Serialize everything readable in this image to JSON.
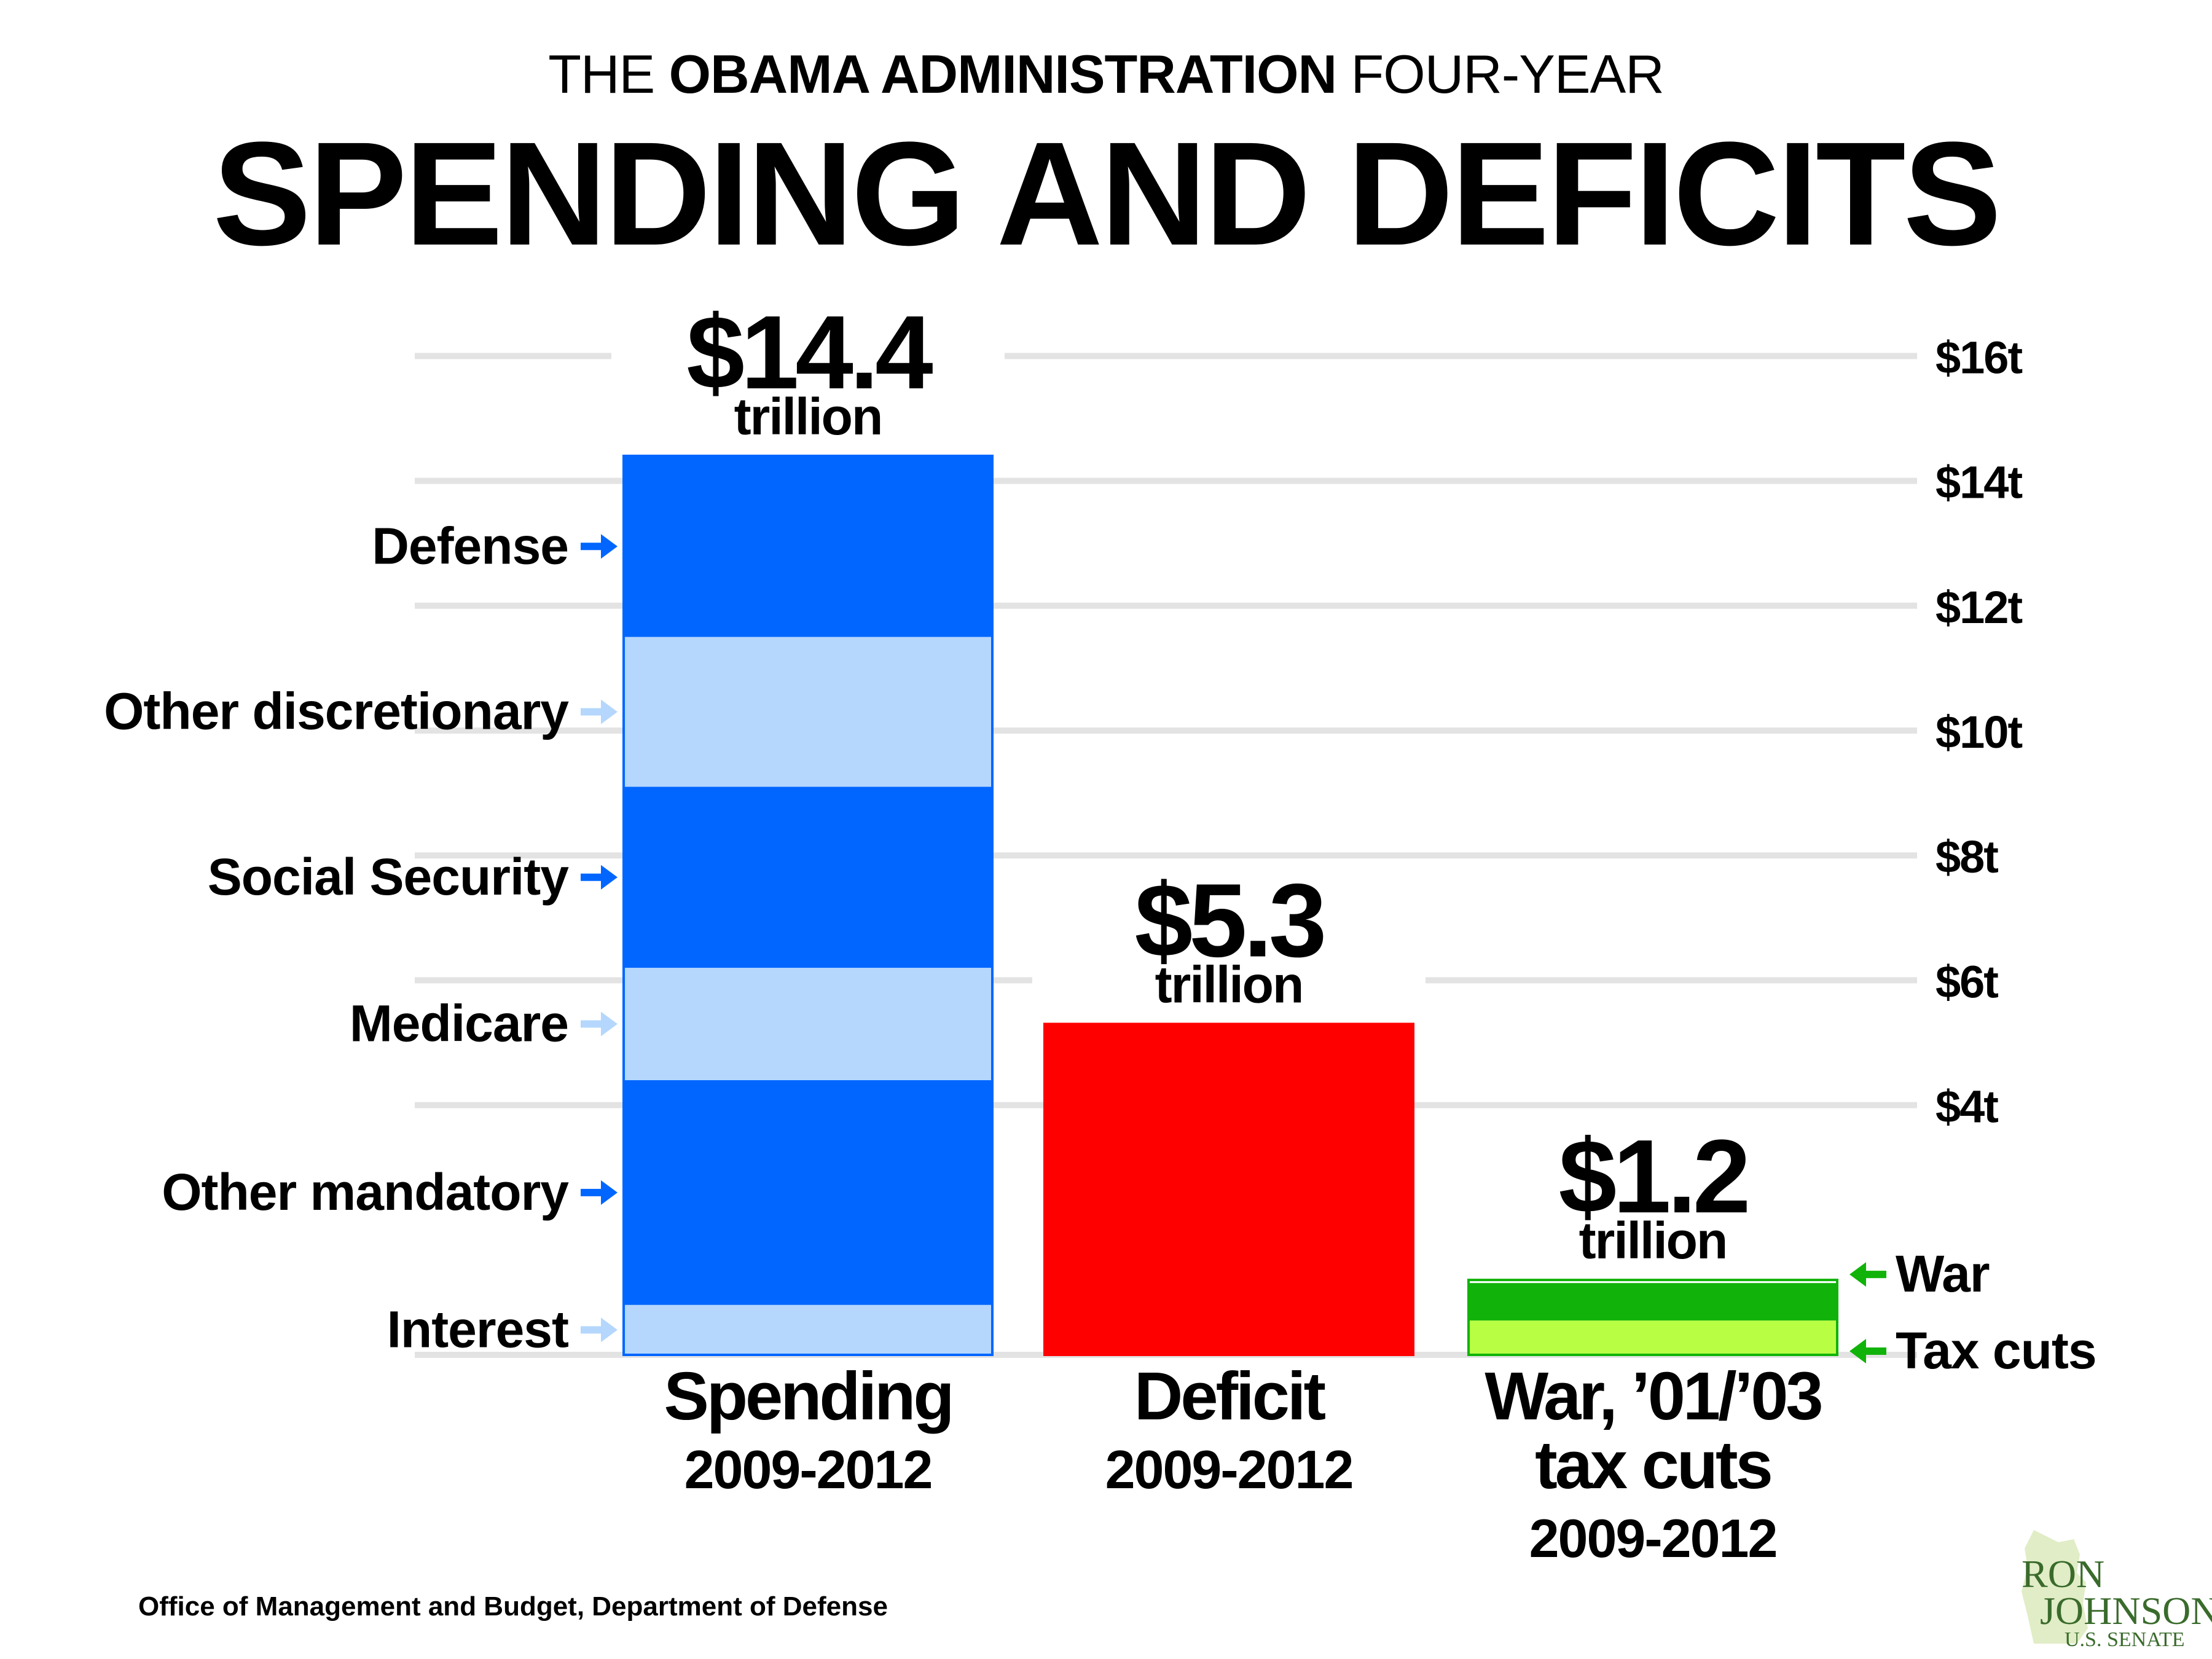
{
  "title": {
    "pre": "THE ",
    "bold": "OBAMA ADMINISTRATION",
    "post": " FOUR-YEAR",
    "main": "SPENDING AND DEFICITS"
  },
  "source": "Office of Management and Budget, Department of Defense",
  "logo": {
    "line1": "RON",
    "line2": "JOHNSON",
    "line3": "U.S. SENATE"
  },
  "chart_data": {
    "type": "bar",
    "unit": "trillion",
    "ylim": [
      0,
      16
    ],
    "y_ticks": [
      {
        "value": 4,
        "label": "$4t"
      },
      {
        "value": 6,
        "label": "$6t"
      },
      {
        "value": 8,
        "label": "$8t"
      },
      {
        "value": 10,
        "label": "$10t"
      },
      {
        "value": 12,
        "label": "$12t"
      },
      {
        "value": 14,
        "label": "$14t"
      },
      {
        "value": 16,
        "label": "$16t"
      }
    ],
    "grid": true,
    "bars": [
      {
        "category": [
          "Spending",
          "2009-2012"
        ],
        "total": 14.4,
        "total_label": "$14.4",
        "total_unit": "trillion",
        "color": "#0066ff",
        "segments": [
          {
            "name": "Interest",
            "value": 0.8,
            "color": "#b5d7fd",
            "arrow": "#b5d7fd"
          },
          {
            "name": "Other mandatory",
            "value": 3.6,
            "color": "#0066ff",
            "arrow": "#0066ff"
          },
          {
            "name": "Medicare",
            "value": 1.8,
            "color": "#b5d7fd",
            "arrow": "#b5d7fd"
          },
          {
            "name": "Social Security",
            "value": 2.9,
            "color": "#0066ff",
            "arrow": "#0066ff"
          },
          {
            "name": "Other discretionary",
            "value": 2.4,
            "color": "#b5d7fd",
            "arrow": "#b5d7fd"
          },
          {
            "name": "Defense",
            "value": 2.9,
            "color": "#0066ff",
            "arrow": "#0066ff"
          }
        ]
      },
      {
        "category": [
          "Deficit",
          "2009-2012"
        ],
        "total": 5.3,
        "total_label": "$5.3",
        "total_unit": "trillion",
        "color": "#ff0000",
        "segments": [
          {
            "name": "",
            "value": 5.3,
            "color": "#ff0000"
          }
        ]
      },
      {
        "category": [
          "War, ’01/’03",
          "tax cuts",
          "2009-2012"
        ],
        "total": 1.2,
        "total_label": "$1.2",
        "total_unit": "trillion",
        "color": "#11b30a",
        "segments": [
          {
            "name": "Tax cuts",
            "value": 0.55,
            "color": "#b8ff44",
            "arrow": "#11b30a"
          },
          {
            "name": "War",
            "value": 0.6,
            "color": "#11b30a",
            "arrow": "#11b30a"
          }
        ]
      }
    ]
  }
}
